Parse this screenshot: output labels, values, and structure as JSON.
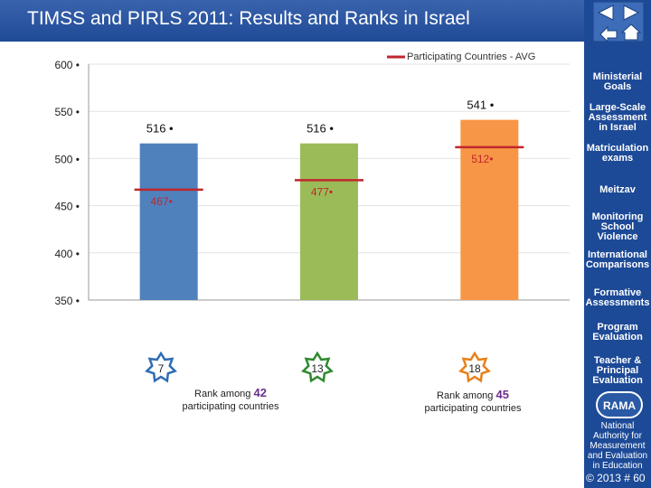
{
  "header": {
    "title": "TIMSS and PIRLS 2011:  Results and Ranks in Israel"
  },
  "sidebar": {
    "items": [
      {
        "label": "Ministerial Goals"
      },
      {
        "label": "Large-Scale Assessment in Israel"
      },
      {
        "label": "Matriculation exams"
      },
      {
        "label": "Meitzav"
      },
      {
        "label": "Monitoring School Violence"
      },
      {
        "label": "International Comparisons"
      },
      {
        "label": "Formative Assessments"
      },
      {
        "label": "Program Evaluation"
      },
      {
        "label": "Teacher & Principal Evaluation"
      }
    ],
    "logo_text": "RAMA",
    "org_name": "National Authority for Measurement and Evaluation in Education"
  },
  "footer": {
    "copyright": "© 2013 # 60"
  },
  "ranks": [
    {
      "rank": "7",
      "prefix": "Rank among",
      "count": "42",
      "suffix": "participating countries",
      "star_color": "#2e6db4"
    },
    {
      "rank": "13",
      "prefix": "",
      "count": "",
      "suffix": "",
      "star_color": "#2f8a2f"
    },
    {
      "rank": "18",
      "prefix": "Rank among",
      "count": "45",
      "suffix": "participating countries",
      "star_color": "#e8801a"
    }
  ],
  "chart_data": {
    "type": "bar",
    "legend": "Participating Countries - AVG",
    "ylim": [
      350,
      600
    ],
    "yticks": [
      350,
      400,
      450,
      500,
      550,
      600
    ],
    "bars": [
      {
        "value": 516,
        "label": "516",
        "color": "#4f81bd",
        "avg": 467,
        "avg_label": "467"
      },
      {
        "value": 516,
        "label": "516",
        "color": "#9bbb59",
        "avg": 477,
        "avg_label": "477"
      },
      {
        "value": 541,
        "label": "541",
        "color": "#f79646",
        "avg": 512,
        "avg_label": "512"
      }
    ],
    "avg_color": "#c0262c"
  }
}
